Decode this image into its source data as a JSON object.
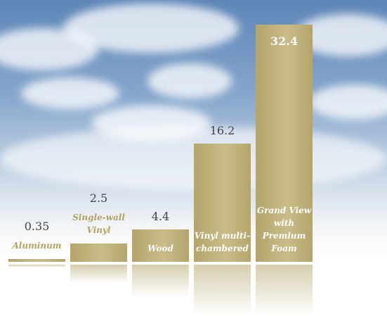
{
  "chart_data": {
    "type": "bar",
    "categories": [
      "Aluminum",
      "Single-wall Vinyl",
      "Wood",
      "Vinyl multi-chambered",
      "Grand View with Premium Foam"
    ],
    "values": [
      0.35,
      2.5,
      4.4,
      16.2,
      32.4
    ],
    "color": "#b3a56c"
  }
}
